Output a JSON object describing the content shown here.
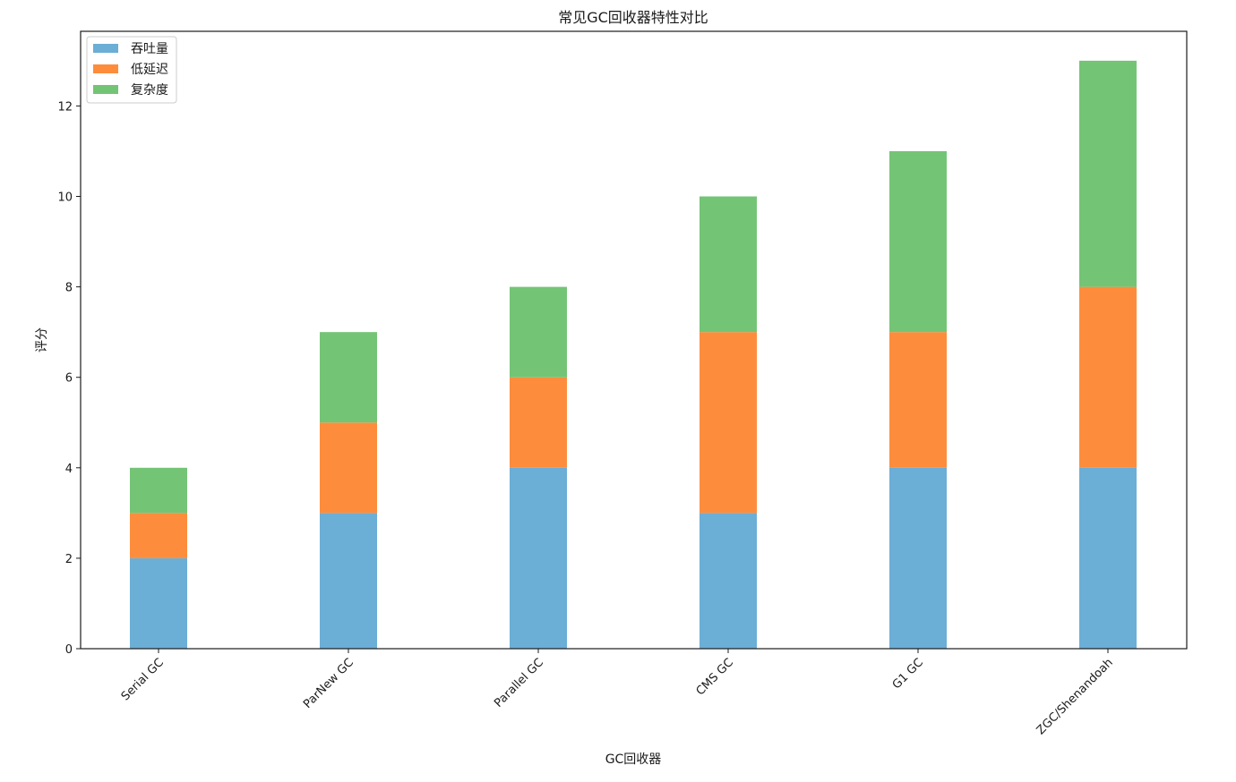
{
  "chart_data": {
    "type": "bar",
    "stacked": true,
    "title": "常见GC回收器特性对比",
    "xlabel": "GC回收器",
    "ylabel": "评分",
    "categories": [
      "Serial GC",
      "ParNew GC",
      "Parallel GC",
      "CMS GC",
      "G1 GC",
      "ZGC/Shenandoah"
    ],
    "series": [
      {
        "name": "吞吐量",
        "values": [
          2,
          3,
          4,
          3,
          4,
          4
        ],
        "color": "#6baed6"
      },
      {
        "name": "低延迟",
        "values": [
          1,
          2,
          2,
          4,
          3,
          4
        ],
        "color": "#fd8d3c"
      },
      {
        "name": "复杂度",
        "values": [
          1,
          2,
          2,
          3,
          4,
          5
        ],
        "color": "#74c476"
      }
    ],
    "ylim": [
      0,
      13.65
    ],
    "yticks": [
      0,
      2,
      4,
      6,
      8,
      10,
      12
    ],
    "grid": false,
    "legend_position": "top-left"
  }
}
